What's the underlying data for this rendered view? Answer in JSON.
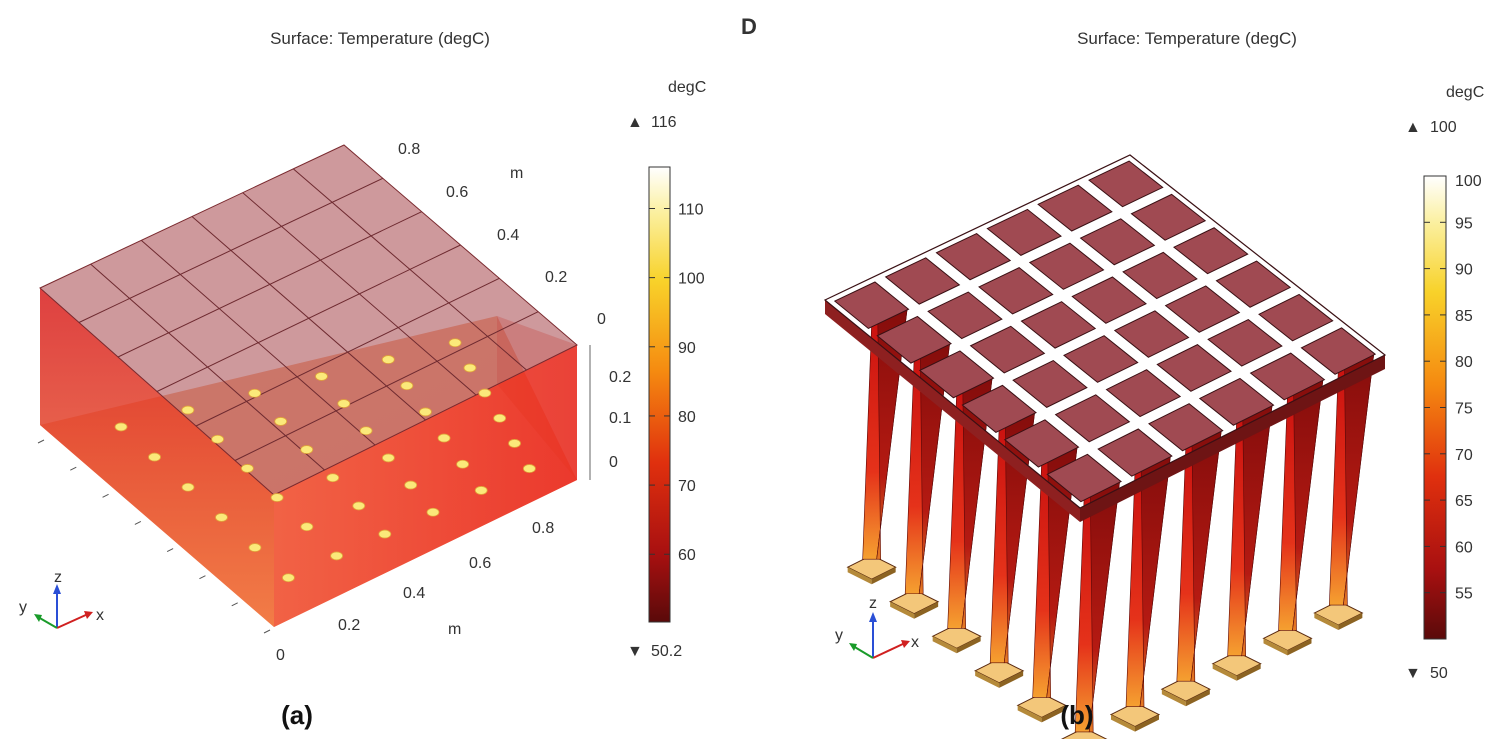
{
  "marker": "D",
  "panels": [
    {
      "id": "a",
      "title": "Surface: Temperature (degC)",
      "unit": "degC",
      "max_label": "116",
      "min_label": "50.2",
      "max_marker": "▲",
      "min_marker": "▼",
      "colorbar_ticks": [
        "110",
        "100",
        "90",
        "80",
        "70",
        "60"
      ],
      "axis_unit": "m",
      "y_ticks": [
        "0.8",
        "0.6",
        "0.4",
        "0.2",
        "0"
      ],
      "z_ticks": [
        "0.2",
        "0.1",
        "0"
      ],
      "x_ticks": [
        "0.8",
        "0.6",
        "0.4",
        "0.2",
        "0"
      ],
      "triad": {
        "z": "z",
        "y": "y",
        "x": "x"
      },
      "caption": "(a)"
    },
    {
      "id": "b",
      "title": "Surface: Temperature (degC)",
      "unit": "degC",
      "max_label": "100",
      "min_label": "50",
      "max_marker": "▲",
      "min_marker": "▼",
      "colorbar_ticks": [
        "100",
        "95",
        "90",
        "85",
        "80",
        "75",
        "70",
        "65",
        "60",
        "55"
      ],
      "triad": {
        "z": "z",
        "y": "y",
        "x": "x"
      },
      "caption": "(b)"
    }
  ]
}
